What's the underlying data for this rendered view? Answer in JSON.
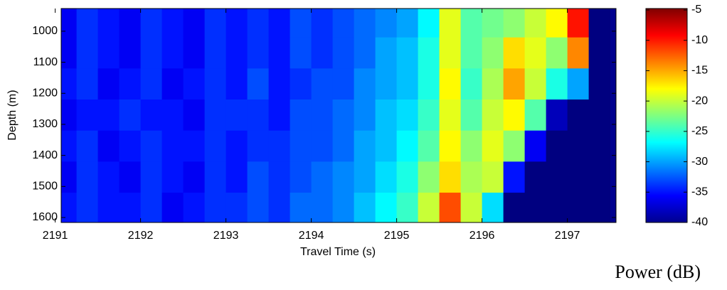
{
  "chart_data": {
    "type": "heatmap",
    "xlabel": "Travel Time (s)",
    "ylabel": "Depth (m)",
    "colorbar_label": "Power (dB)",
    "xlim": [
      2191.07,
      2197.57
    ],
    "xticks": [
      2191,
      2192,
      2193,
      2194,
      2195,
      2196,
      2197
    ],
    "ylim": [
      927,
      1616
    ],
    "yticks": [
      1000,
      1100,
      1200,
      1300,
      1400,
      1500,
      1600
    ],
    "y_reversed": true,
    "clim": [
      -40,
      -5
    ],
    "cticks": [
      -5,
      -10,
      -15,
      -20,
      -25,
      -30,
      -35,
      -40
    ],
    "colormap": "jet",
    "x": [
      2191.125,
      2191.375,
      2191.625,
      2191.875,
      2192.125,
      2192.375,
      2192.625,
      2192.875,
      2193.125,
      2193.375,
      2193.625,
      2193.875,
      2194.125,
      2194.375,
      2194.625,
      2194.875,
      2195.125,
      2195.375,
      2195.625,
      2195.875,
      2196.125,
      2196.375,
      2196.625,
      2196.875,
      2197.125,
      2197.375
    ],
    "y": [
      970,
      1070,
      1170,
      1270,
      1370,
      1470,
      1570
    ],
    "z": [
      [
        -36,
        -34,
        -35,
        -36,
        -34,
        -35,
        -36,
        -34,
        -35,
        -34,
        -35,
        -33,
        -34,
        -33,
        -32,
        -31,
        -30,
        -27,
        -19,
        -24,
        -23,
        -22,
        -20,
        -18,
        -10,
        -40
      ],
      [
        -36,
        -34,
        -35,
        -36,
        -34,
        -35,
        -36,
        -34,
        -35,
        -34,
        -35,
        -33,
        -34,
        -33,
        -32,
        -30,
        -29,
        -26,
        -19,
        -24,
        -22,
        -17,
        -19,
        -22,
        -14,
        -40
      ],
      [
        -35,
        -34,
        -36,
        -35,
        -34,
        -36,
        -35,
        -34,
        -35,
        -33,
        -35,
        -34,
        -33,
        -33,
        -31,
        -30,
        -29,
        -26,
        -18,
        -25,
        -21,
        -15,
        -20,
        -26,
        -30,
        -40
      ],
      [
        -36,
        -35,
        -35,
        -34,
        -35,
        -35,
        -36,
        -34,
        -34,
        -34,
        -35,
        -33,
        -33,
        -32,
        -31,
        -29,
        -28,
        -25,
        -19,
        -24,
        -20,
        -18,
        -24,
        -38,
        -40,
        -40
      ],
      [
        -35,
        -34,
        -36,
        -35,
        -34,
        -35,
        -35,
        -34,
        -35,
        -34,
        -34,
        -33,
        -33,
        -32,
        -30,
        -29,
        -27,
        -24,
        -18,
        -22,
        -19,
        -22,
        -36,
        -40,
        -40,
        -40
      ],
      [
        -36,
        -34,
        -35,
        -36,
        -34,
        -35,
        -36,
        -34,
        -35,
        -33,
        -34,
        -33,
        -32,
        -31,
        -30,
        -28,
        -26,
        -22,
        -17,
        -21,
        -20,
        -35,
        -40,
        -40,
        -40,
        -40
      ],
      [
        -35,
        -34,
        -35,
        -35,
        -34,
        -36,
        -35,
        -34,
        -34,
        -33,
        -34,
        -32,
        -32,
        -31,
        -29,
        -27,
        -25,
        -20,
        -12,
        -20,
        -28,
        -40,
        -40,
        -40,
        -40,
        -40
      ]
    ]
  }
}
